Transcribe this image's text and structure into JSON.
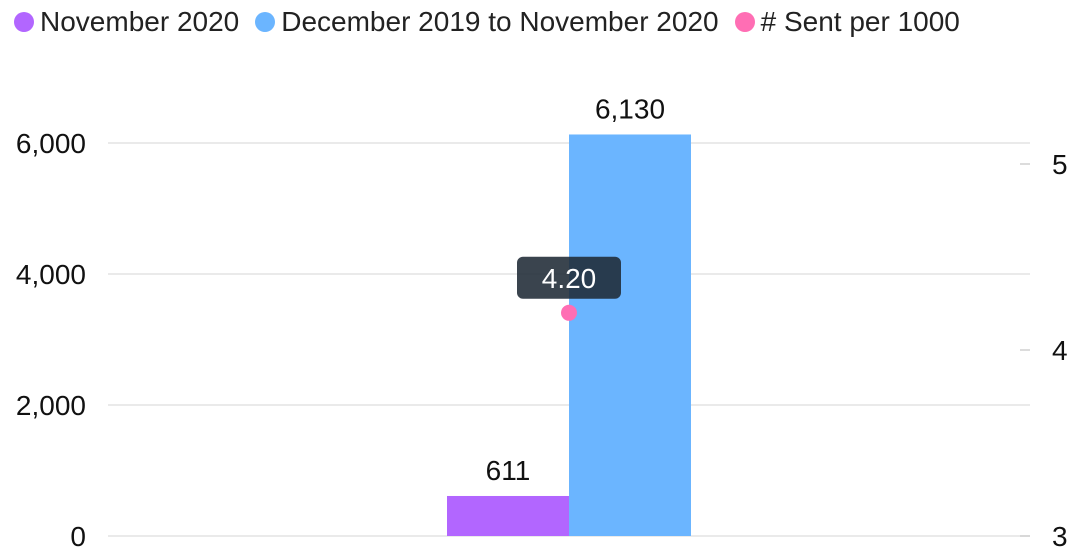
{
  "chart_data": {
    "type": "bar",
    "categories": [
      ""
    ],
    "series": [
      {
        "name": "November 2020",
        "values": [
          611
        ],
        "color": "#b266ff",
        "axis": "left",
        "kind": "bar"
      },
      {
        "name": "December 2019 to November 2020",
        "values": [
          6130
        ],
        "color": "#6bb5ff",
        "axis": "left",
        "kind": "bar"
      },
      {
        "name": "# Sent per 1000",
        "values": [
          4.2
        ],
        "color": "#ff6eb4",
        "axis": "right",
        "kind": "point"
      }
    ],
    "data_labels": [
      "611",
      "6,130",
      "4.20"
    ],
    "y_left": {
      "ticks": [
        0,
        2000,
        4000,
        6000
      ],
      "tick_labels": [
        "0",
        "2,000",
        "4,000",
        "6,000"
      ],
      "lim": [
        0,
        6000
      ]
    },
    "y_right": {
      "ticks": [
        3,
        4,
        5
      ],
      "tick_labels": [
        "3",
        "4",
        "5"
      ],
      "lim": [
        3,
        5
      ]
    },
    "grid": true,
    "legend_position": "top-left",
    "title": "",
    "xlabel": "",
    "ylabel": ""
  }
}
